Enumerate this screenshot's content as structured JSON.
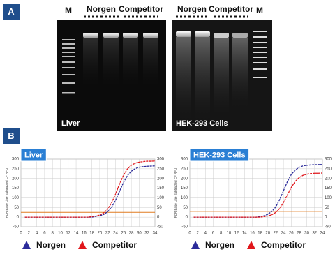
{
  "panel_a": {
    "label": "A",
    "gels": [
      {
        "lanes": [
          "M",
          "Norgen",
          "Competitor"
        ],
        "sample": "Liver"
      },
      {
        "lanes": [
          "Norgen",
          "Competitor",
          "M"
        ],
        "sample": "HEK-293 Cells"
      }
    ]
  },
  "panel_b": {
    "label": "B"
  },
  "chart_data": [
    {
      "type": "line",
      "title": "Liver",
      "ylabel": "PCR Base Line Subtracted CF RFU",
      "x": [
        1,
        2,
        3,
        4,
        5,
        6,
        7,
        8,
        9,
        10,
        11,
        12,
        13,
        14,
        15,
        16,
        17,
        18,
        19,
        20,
        21,
        22,
        23,
        24,
        25,
        26,
        27,
        28,
        29,
        30,
        31,
        32,
        33,
        34
      ],
      "xlim": [
        0,
        34
      ],
      "xticks": [
        0,
        2,
        4,
        6,
        8,
        10,
        12,
        14,
        16,
        18,
        20,
        22,
        24,
        26,
        28,
        30,
        32,
        34
      ],
      "ylim": [
        -50,
        300
      ],
      "yticks": [
        -50,
        0,
        50,
        100,
        150,
        200,
        250,
        300
      ],
      "grid": true,
      "threshold": 25,
      "threshold_color": "#e07b20",
      "series": [
        {
          "name": "Norgen",
          "color": "#2b2b9a",
          "values": [
            0,
            0,
            0,
            0,
            0,
            0,
            0,
            0,
            0,
            0,
            0,
            0,
            0,
            0,
            0,
            0,
            0,
            0,
            4,
            7,
            14,
            28,
            51,
            87,
            133,
            178,
            214,
            237,
            251,
            258,
            261,
            263,
            264,
            265
          ]
        },
        {
          "name": "Competitor",
          "color": "#e0161b",
          "values": [
            0,
            0,
            0,
            0,
            0,
            0,
            0,
            0,
            0,
            0,
            0,
            0,
            0,
            0,
            0,
            0,
            0,
            3,
            6,
            11,
            22,
            41,
            74,
            119,
            171,
            216,
            249,
            268,
            279,
            284,
            287,
            289,
            289,
            290
          ]
        }
      ]
    },
    {
      "type": "line",
      "title": "HEK-293 Cells",
      "ylabel": "PCR Base Line Subtracted CF RFU",
      "x": [
        1,
        2,
        3,
        4,
        5,
        6,
        7,
        8,
        9,
        10,
        11,
        12,
        13,
        14,
        15,
        16,
        17,
        18,
        19,
        20,
        21,
        22,
        23,
        24,
        25,
        26,
        27,
        28,
        29,
        30,
        31,
        32,
        33,
        34
      ],
      "xlim": [
        0,
        34
      ],
      "xticks": [
        0,
        2,
        4,
        6,
        8,
        10,
        12,
        14,
        16,
        18,
        20,
        22,
        24,
        26,
        28,
        30,
        32,
        34
      ],
      "ylim": [
        -50,
        300
      ],
      "yticks": [
        -50,
        0,
        50,
        100,
        150,
        200,
        250,
        300
      ],
      "grid": true,
      "threshold": 30,
      "threshold_color": "#e07b20",
      "series": [
        {
          "name": "Norgen",
          "color": "#2b2b9a",
          "values": [
            0,
            0,
            0,
            0,
            0,
            0,
            0,
            0,
            0,
            0,
            0,
            0,
            0,
            0,
            0,
            0,
            0,
            4,
            7,
            15,
            29,
            52,
            89,
            136,
            183,
            220,
            243,
            257,
            265,
            268,
            270,
            271,
            272,
            272
          ]
        },
        {
          "name": "Competitor",
          "color": "#e0161b",
          "values": [
            0,
            0,
            0,
            0,
            0,
            0,
            0,
            0,
            0,
            0,
            0,
            0,
            0,
            0,
            0,
            0,
            0,
            0,
            3,
            6,
            12,
            24,
            44,
            75,
            114,
            153,
            184,
            204,
            216,
            222,
            225,
            227,
            227,
            228
          ]
        }
      ]
    }
  ]
}
